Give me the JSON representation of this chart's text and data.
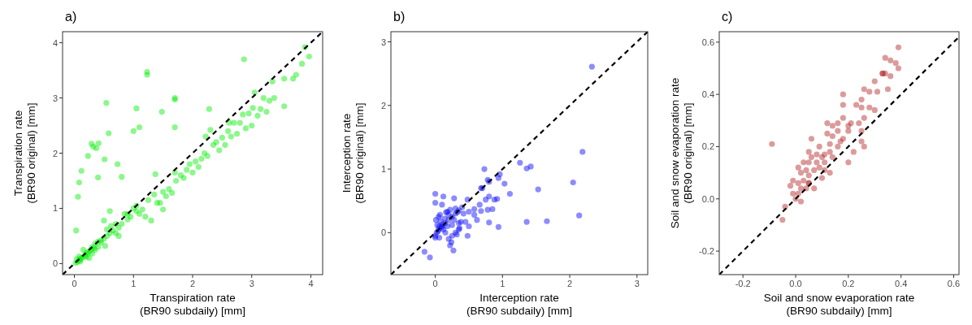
{
  "chart_data": [
    {
      "type": "scatter",
      "title": "a)",
      "xlabel": "Transpiration rate\n(BR90 subdaily) [mm]",
      "ylabel": "Transpiration rate\n(BR90 original) [mm]",
      "xlim": [
        -0.2,
        4.2
      ],
      "ylim": [
        -0.2,
        4.2
      ],
      "xticks": [
        0,
        1,
        2,
        3,
        4
      ],
      "yticks": [
        0,
        1,
        2,
        3,
        4
      ],
      "series": [
        {
          "marker": "circle",
          "color": "#00ee00",
          "x": [
            1.23,
            1.23,
            2.87,
            0.54,
            1.05,
            1.48,
            1.7,
            1.7,
            1.7,
            1.0,
            1.1,
            0.58,
            0.29,
            0.32,
            0.37,
            0.41,
            0.23,
            0.51,
            0.73,
            0.12,
            0.08,
            0.06,
            0.4,
            0.8,
            1.37,
            2.28,
            0.03,
            0.02,
            0.05,
            0.08,
            0.1,
            0.12,
            0.04,
            0.15,
            0.18,
            0.2,
            0.22,
            0.25,
            0.28,
            0.3,
            0.33,
            0.35,
            0.4,
            0.45,
            0.5,
            0.55,
            0.5,
            0.55,
            0.6,
            0.6,
            0.65,
            0.7,
            0.75,
            0.8,
            0.85,
            0.9,
            0.95,
            1.0,
            1.05,
            1.1,
            1.15,
            1.2,
            1.3,
            1.25,
            1.35,
            1.4,
            1.45,
            1.5,
            1.5,
            1.55,
            1.6,
            1.65,
            1.7,
            1.72,
            1.8,
            1.85,
            1.9,
            1.95,
            2.0,
            2.05,
            2.1,
            2.15,
            2.2,
            2.22,
            2.25,
            2.3,
            2.35,
            2.4,
            2.45,
            2.5,
            2.55,
            2.6,
            2.62,
            2.65,
            2.7,
            2.75,
            2.8,
            2.85,
            2.9,
            2.95,
            3.0,
            3.02,
            3.05,
            3.1,
            3.15,
            3.2,
            3.25,
            3.3,
            3.35,
            3.38,
            3.55,
            3.55,
            3.7,
            3.75,
            3.85,
            3.9,
            3.97,
            0.3,
            0.35,
            0.45,
            0.52,
            0.7,
            0.75,
            0.9,
            1.05,
            0.62,
            0.4,
            0.1,
            0.2,
            0.25,
            0.15,
            0.08
          ],
          "values": [
            3.47,
            3.42,
            3.7,
            2.91,
            2.81,
            2.75,
            3.0,
            2.97,
            2.47,
            2.4,
            2.47,
            2.36,
            2.17,
            2.12,
            2.09,
            2.18,
            1.95,
            1.89,
            1.8,
            1.68,
            1.47,
            1.21,
            1.56,
            1.57,
            1.62,
            2.8,
            0.6,
            0.01,
            0.03,
            0.06,
            0.08,
            0.1,
            0.08,
            0.12,
            0.15,
            0.2,
            0.18,
            0.22,
            0.25,
            0.3,
            0.28,
            0.36,
            0.4,
            0.42,
            0.45,
            0.5,
            0.78,
            0.62,
            0.55,
            0.95,
            0.6,
            0.72,
            0.65,
            0.72,
            0.9,
            0.8,
            0.85,
            1.0,
            0.95,
            0.9,
            0.98,
            0.85,
            0.78,
            1.15,
            1.25,
            1.1,
            1.1,
            0.98,
            1.3,
            1.22,
            1.35,
            1.28,
            1.65,
            1.5,
            1.6,
            1.55,
            1.7,
            1.8,
            1.65,
            1.85,
            1.75,
            1.9,
            2.0,
            2.3,
            1.95,
            2.42,
            2.15,
            2.2,
            2.05,
            2.28,
            2.15,
            2.4,
            2.55,
            2.3,
            2.55,
            2.35,
            2.55,
            2.7,
            2.45,
            2.72,
            2.5,
            2.82,
            3.1,
            2.68,
            2.8,
            3.0,
            2.75,
            2.95,
            3.3,
            3.0,
            2.85,
            3.35,
            3.35,
            3.42,
            3.62,
            3.92,
            3.75,
            0.18,
            0.25,
            0.38,
            0.32,
            0.55,
            0.5,
            0.9,
            1.05,
            0.68,
            0.3,
            0.04,
            0.12,
            0.1,
            0.25,
            0.13
          ]
        },
        {
          "type": "line",
          "color": "#000000",
          "line_style": "dashed",
          "x": [
            -0.2,
            4.2
          ],
          "values": [
            -0.2,
            4.2
          ]
        }
      ]
    },
    {
      "type": "scatter",
      "title": "b)",
      "xlabel": "Interception rate\n(BR90 subdaily) [mm]",
      "ylabel": "Interception rate\n(BR90 original) [mm]",
      "xlim": [
        -0.66,
        3.16
      ],
      "ylim": [
        -0.66,
        3.16
      ],
      "xticks": [
        0,
        1,
        2,
        3
      ],
      "yticks": [
        0,
        1,
        2,
        3
      ],
      "series": [
        {
          "marker": "circle",
          "color": "#0000ff",
          "x": [
            2.33,
            2.19,
            2.05,
            2.14,
            1.66,
            1.36,
            1.53,
            1.42,
            1.36,
            1.26,
            1.11,
            1.03,
            0.96,
            0.94,
            0.94,
            0.73,
            0.78,
            0.8,
            0.68,
            0.7,
            0.88,
            0.92,
            0.85,
            0.8,
            0.78,
            0.8,
            0.75,
            0.68,
            0.66,
            0.62,
            0.58,
            0.58,
            0.48,
            0.5,
            0.48,
            0.45,
            0.5,
            0.42,
            0.35,
            0.36,
            0.3,
            0.32,
            0.25,
            0.27,
            0.24,
            0.2,
            0.22,
            0.35,
            0.4,
            0.35,
            0.3,
            0.25,
            0.2,
            0.15,
            0.1,
            0.05,
            0.02,
            0.0,
            0.01,
            0.0,
            0.0,
            0.12,
            0.28,
            0.1,
            0.18,
            0.22,
            0.05,
            0.08,
            0.12,
            0.15,
            0.16,
            0.06,
            0.0,
            0.03,
            0.07,
            0.14,
            0.18,
            0.25,
            0.28,
            0.3,
            0.33,
            -0.16,
            -0.08,
            0.04,
            0.06,
            0.09,
            0.11,
            0.2,
            0.38
          ],
          "values": [
            2.61,
            1.27,
            0.79,
            0.27,
            0.18,
            0.17,
            0.68,
            1.04,
            1.01,
            1.1,
            0.61,
            0.77,
            0.92,
            0.86,
            0.09,
            1.0,
            0.83,
            0.8,
            0.7,
            0.7,
            0.52,
            0.53,
            0.37,
            0.57,
            0.36,
            0.16,
            0.52,
            0.34,
            0.44,
            0.2,
            0.28,
            0.37,
            0.52,
            0.1,
            -0.05,
            0.17,
            0.33,
            0.3,
            0.15,
            0.07,
            0.0,
            -0.03,
            -0.05,
            -0.28,
            -0.15,
            -0.1,
            -0.2,
            0.05,
            0.4,
            0.35,
            0.3,
            0.25,
            0.2,
            0.15,
            0.1,
            0.05,
            0.0,
            -0.05,
            0.2,
            0.47,
            0.61,
            0.57,
            0.54,
            0.44,
            0.33,
            0.36,
            0.25,
            0.18,
            0.05,
            0.0,
            0.32,
            -0.08,
            -0.08,
            0.12,
            0.28,
            0.22,
            0.1,
            0.12,
            0.2,
            0.38,
            0.32,
            -0.3,
            -0.39,
            0.02,
            0.1,
            0.08,
            0.13,
            0.28,
            0.17
          ]
        },
        {
          "type": "line",
          "color": "#000000",
          "line_style": "dashed",
          "x": [
            -0.66,
            3.16
          ],
          "values": [
            -0.66,
            3.16
          ]
        }
      ]
    },
    {
      "type": "scatter",
      "title": "c)",
      "xlabel": "Soil and snow evaporation rate\n(BR90 subdaily) [mm]",
      "ylabel": "Soil and snow evaporation rate\n(BR90 original) [mm]",
      "xlim": [
        -0.29,
        0.62
      ],
      "ylim": [
        -0.29,
        0.64
      ],
      "xticks": [
        {
          "value": -0.2,
          "label": "-0.2"
        },
        {
          "value": 0,
          "label": "0.0"
        },
        {
          "value": 0.2,
          "label": "0.2"
        },
        {
          "value": 0.4,
          "label": "0.4"
        },
        {
          "value": 0.6,
          "label": "0.6"
        }
      ],
      "yticks": [
        {
          "value": -0.2,
          "label": "-0.2"
        },
        {
          "value": 0,
          "label": "0.0"
        },
        {
          "value": 0.2,
          "label": "0.2"
        },
        {
          "value": 0.4,
          "label": "0.4"
        },
        {
          "value": 0.6,
          "label": "0.6"
        }
      ],
      "series": [
        {
          "marker": "circle",
          "color": "#b22222",
          "x": [
            -0.09,
            -0.05,
            -0.04,
            0.39,
            0.39,
            0.38,
            0.34,
            0.36,
            0.33,
            0.34,
            0.36,
            0.33,
            0.35,
            0.3,
            0.28,
            0.31,
            0.26,
            0.18,
            0.18,
            0.23,
            0.25,
            0.25,
            0.28,
            0.3,
            0.26,
            0.24,
            0.25,
            0.18,
            0.16,
            0.12,
            0.2,
            0.26,
            0.22,
            0.2,
            0.25,
            0.18,
            0.14,
            0.13,
            0.13,
            0.11,
            0.13,
            0.1,
            0.09,
            0.08,
            0.06,
            0.06,
            0.05,
            0.04,
            0.03,
            0.01,
            -0.01,
            -0.02,
            0.01,
            0.02,
            0.0,
            0.02,
            0.05,
            0.07,
            0.05,
            0.09,
            0.11,
            0.14,
            0.16,
            0.17,
            0.2,
            0.21,
            0.14,
            0.16,
            0.12,
            0.08,
            0.05,
            0.03,
            0.02,
            0.01,
            -0.01,
            0.04,
            0.05,
            0.07,
            0.1,
            0.11
          ],
          "values": [
            0.21,
            -0.08,
            -0.03,
            0.58,
            0.5,
            0.52,
            0.54,
            0.53,
            0.48,
            0.48,
            0.47,
            0.48,
            0.42,
            0.45,
            0.41,
            0.41,
            0.42,
            0.4,
            0.36,
            0.36,
            0.38,
            0.35,
            0.35,
            0.34,
            0.31,
            0.29,
            0.26,
            0.31,
            0.29,
            0.29,
            0.28,
            0.2,
            0.18,
            0.14,
            0.22,
            0.23,
            0.24,
            0.21,
            0.18,
            0.17,
            0.1,
            0.16,
            0.2,
            0.14,
            0.23,
            0.16,
            0.14,
            0.11,
            0.07,
            0.12,
            0.07,
            0.05,
            0.02,
            0.04,
            0.0,
            -0.01,
            0.06,
            0.04,
            0.09,
            0.12,
            0.14,
            0.16,
            0.2,
            0.22,
            0.26,
            0.29,
            0.28,
            0.26,
            0.25,
            0.17,
            0.18,
            0.14,
            0.1,
            0.06,
            0.02,
            0.04,
            0.06,
            0.11,
            0.08,
            0.11
          ]
        },
        {
          "type": "line",
          "color": "#000000",
          "line_style": "dashed",
          "x": [
            -0.29,
            0.62
          ],
          "values": [
            -0.29,
            0.62
          ]
        }
      ]
    }
  ]
}
